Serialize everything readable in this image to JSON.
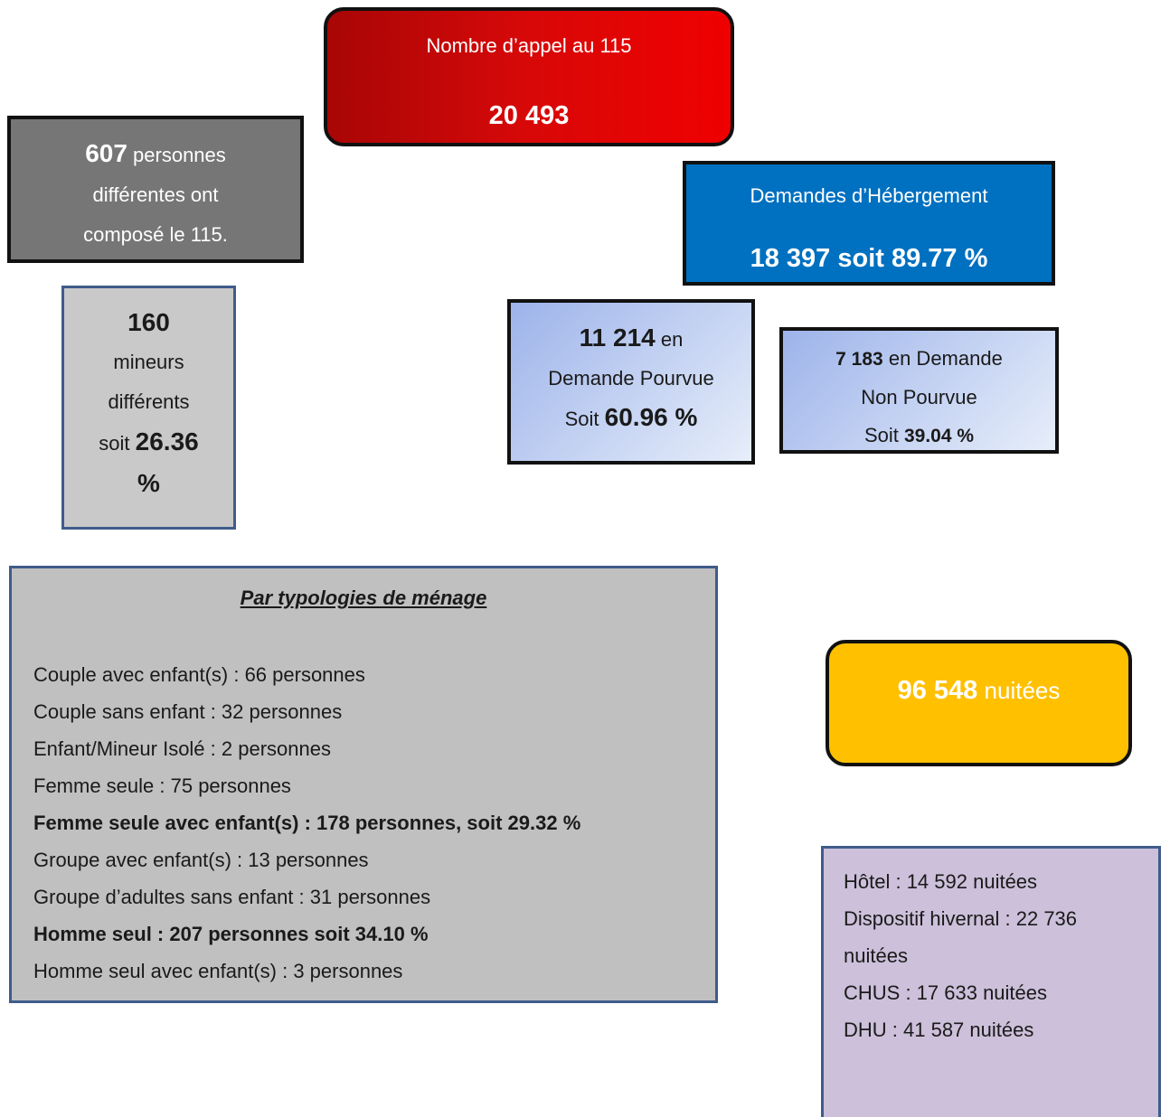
{
  "calls": {
    "label": "Nombre d’appel au 115",
    "value": "20 493"
  },
  "persons": {
    "value": "607",
    "line1": " personnes",
    "line2": "différentes ont",
    "line3": "composé le 115."
  },
  "minors": {
    "value": "160",
    "line1": "mineurs",
    "line2": "différents",
    "soit": "soit ",
    "pct_value": "26.36",
    "pct_sign": "%"
  },
  "hebergement": {
    "label": "Demandes d’Hébergement",
    "value": "18 397 soit 89.77 %"
  },
  "pourvue": {
    "value": "11 214",
    "suffix": " en",
    "line2": "Demande Pourvue",
    "soit": "Soit ",
    "pct": "60.96 %"
  },
  "non_pourvue": {
    "value": "7 183",
    "suffix": " en Demande",
    "line2": "Non Pourvue",
    "soit": "Soit ",
    "pct": "39.04 %"
  },
  "typologies": {
    "title": "Par typologies de ménage",
    "items": [
      "Couple avec enfant(s) : 66 personnes",
      "Couple sans enfant : 32 personnes",
      "Enfant/Mineur Isolé : 2 personnes",
      "Femme seule : 75 personnes",
      "Femme seule avec enfant(s) : 178 personnes, soit 29.32 %",
      "Groupe avec enfant(s) : 13 personnes",
      "Groupe d’adultes sans enfant : 31 personnes",
      "Homme seul : 207 personnes soit 34.10 %",
      "Homme seul avec enfant(s) : 3 personnes"
    ]
  },
  "nuitees": {
    "value": "96 548",
    "label": " nuitées"
  },
  "detail": {
    "items": [
      "Hôtel : 14 592 nuitées",
      "Dispositif hivernal : 22 736",
      "nuitées",
      "CHUS : 17 633 nuitées",
      "DHU : 41 587 nuitées"
    ]
  },
  "colors": {
    "calls_bg": "#e00000",
    "persons_bg": "#767676",
    "minors_bg": "#c9c9c9",
    "hebergement_bg": "#0070c0",
    "demande_bg": "#c5d3f2",
    "typologies_bg": "#c0c0c0",
    "nuitees_bg": "#ffc000",
    "detail_bg": "#ccc0da"
  }
}
